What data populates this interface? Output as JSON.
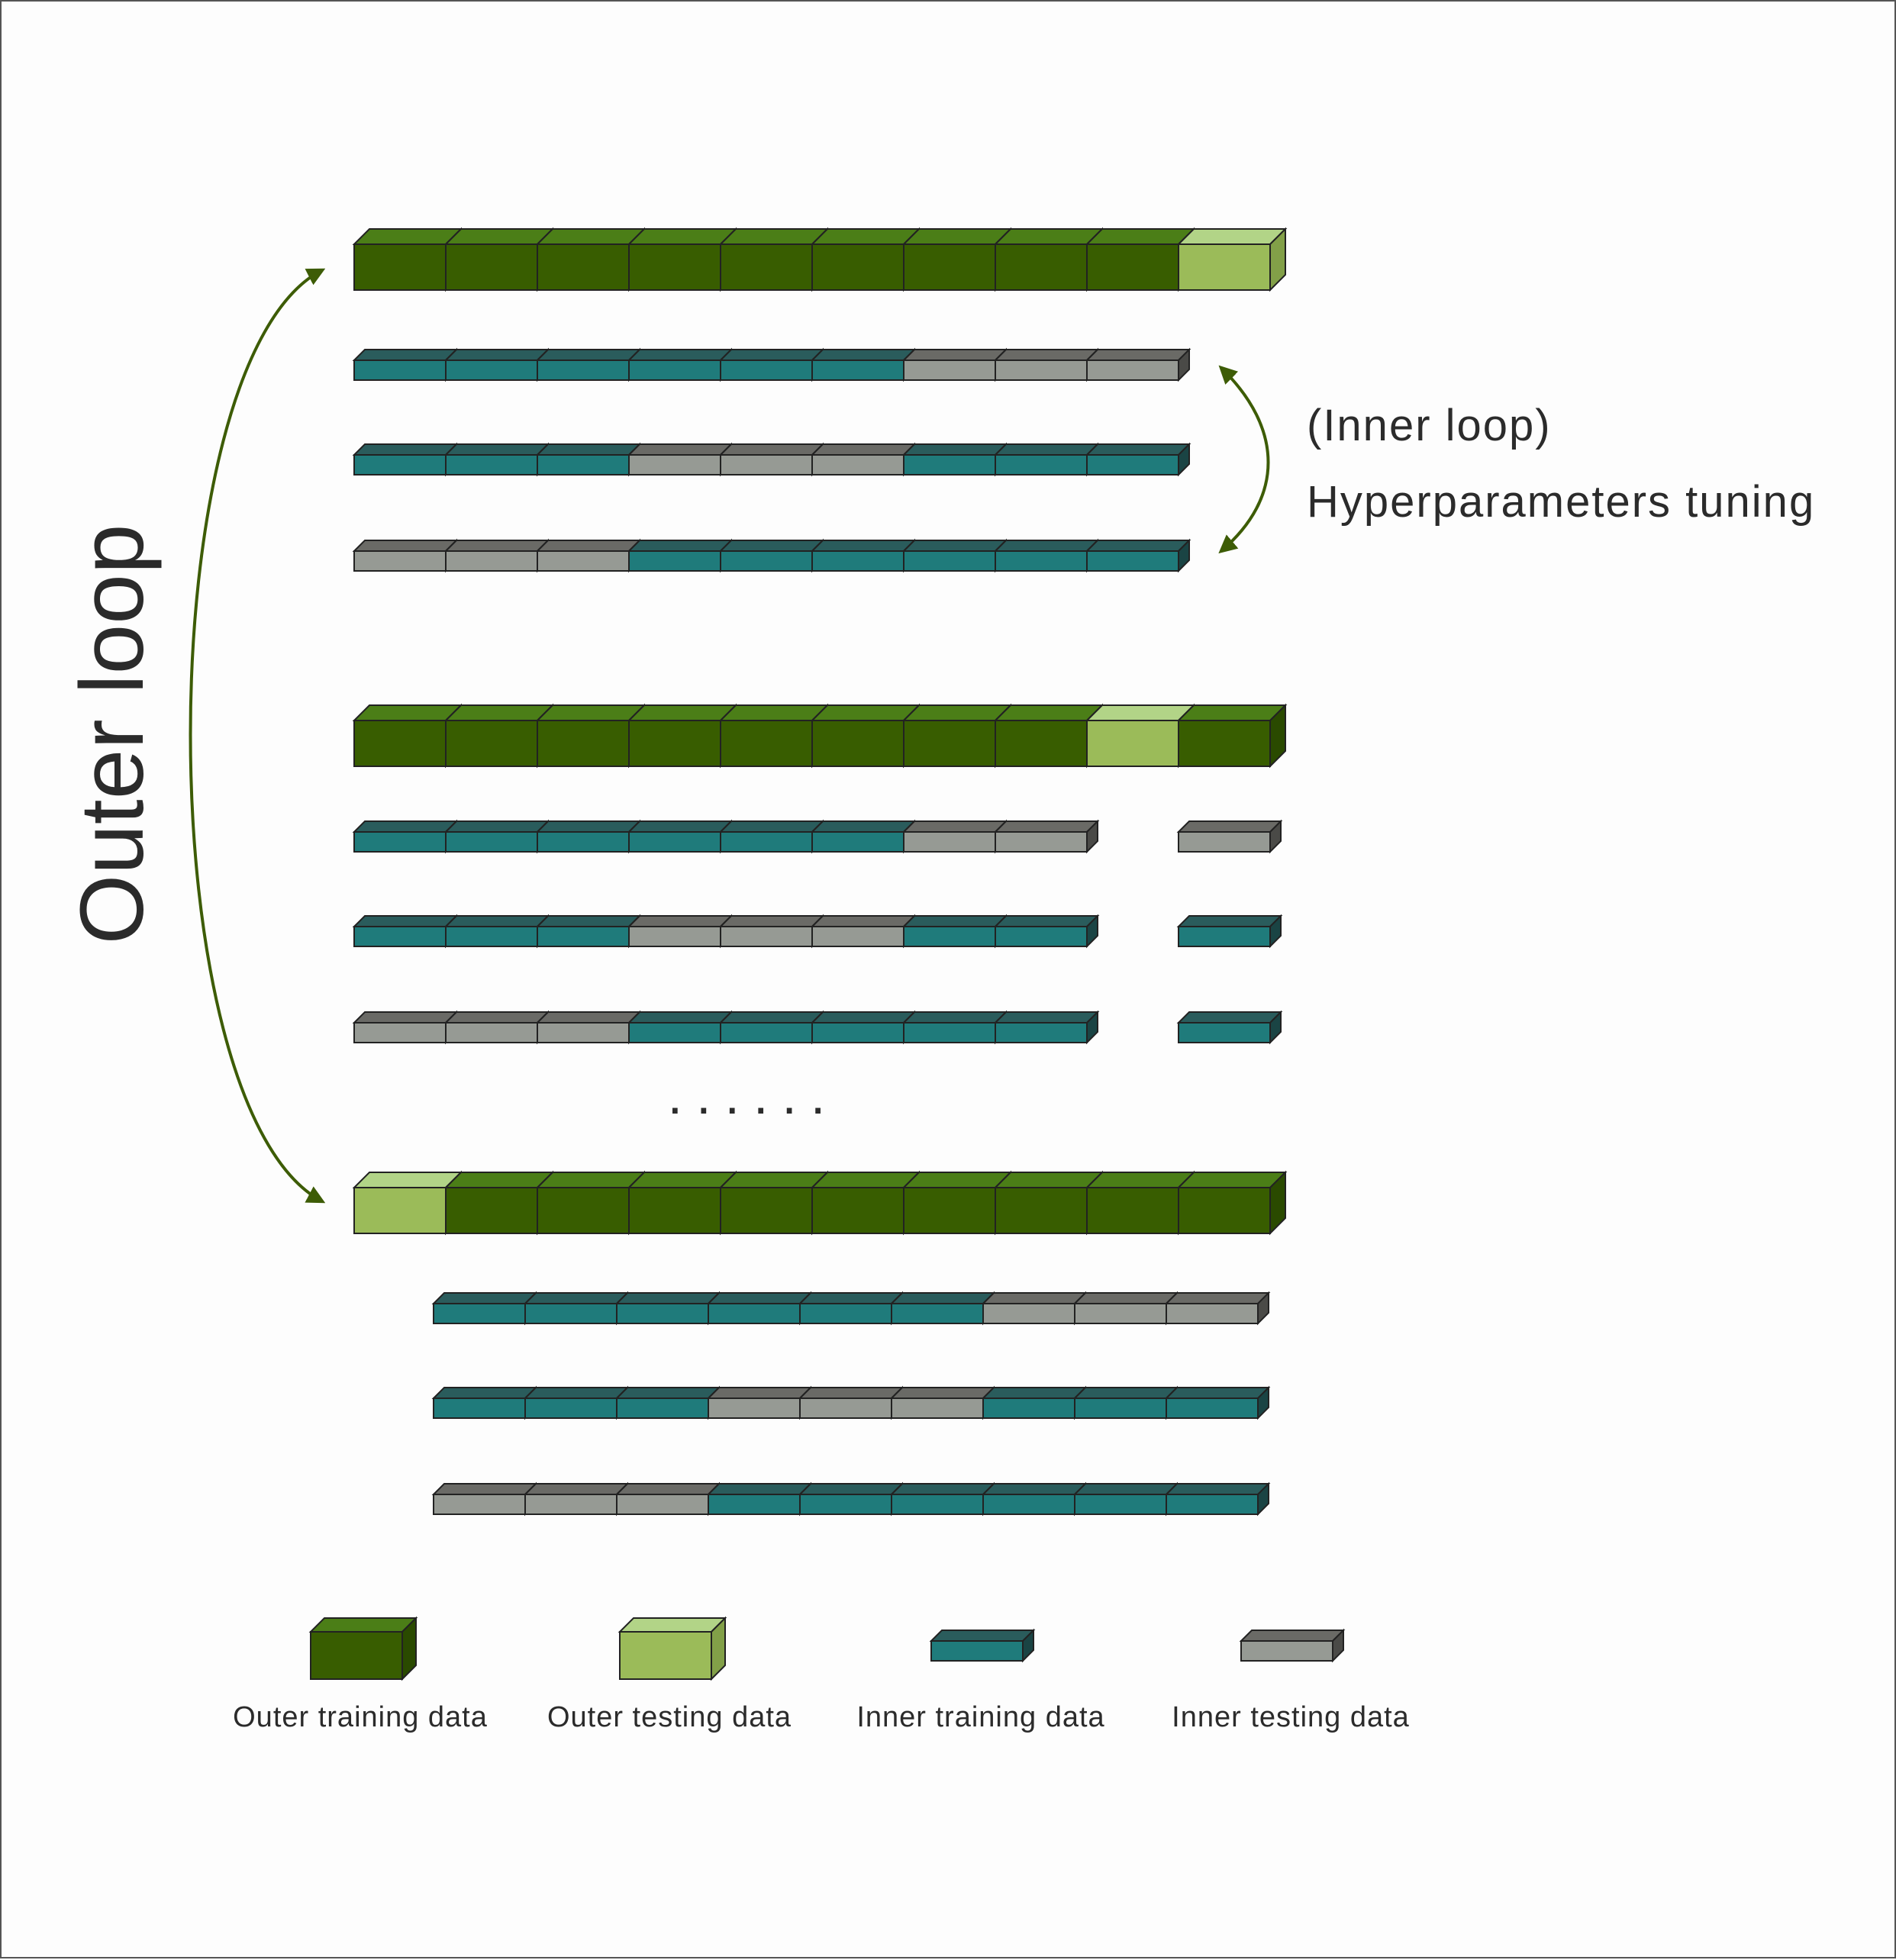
{
  "outer_loop_label": "Outer loop",
  "inner_loop_label": "(Inner loop)",
  "inner_loop_caption": "Hyperparameters tuning",
  "ellipsis": "......",
  "colors": {
    "outer_train": "#385d00",
    "outer_test": "#9bbb59",
    "inner_train": "#1f7b7b",
    "inner_test": "#969a94",
    "arrow": "#3d5c06"
  },
  "legend": [
    {
      "key": "outer_train",
      "label": "Outer training data"
    },
    {
      "key": "outer_test",
      "label": "Outer testing data"
    },
    {
      "key": "inner_train",
      "label": "Inner training data"
    },
    {
      "key": "inner_test",
      "label": "Inner testing data"
    }
  ],
  "groups": [
    {
      "outer": [
        "OTR",
        "OTR",
        "OTR",
        "OTR",
        "OTR",
        "OTR",
        "OTR",
        "OTR",
        "OTR",
        "OTE"
      ],
      "inner": [
        [
          "ITR",
          "ITR",
          "ITR",
          "ITR",
          "ITR",
          "ITR",
          "ITE",
          "ITE",
          "ITE"
        ],
        [
          "ITR",
          "ITR",
          "ITR",
          "ITE",
          "ITE",
          "ITE",
          "ITR",
          "ITR",
          "ITR"
        ],
        [
          "ITE",
          "ITE",
          "ITE",
          "ITR",
          "ITR",
          "ITR",
          "ITR",
          "ITR",
          "ITR"
        ]
      ]
    },
    {
      "outer": [
        "OTR",
        "OTR",
        "OTR",
        "OTR",
        "OTR",
        "OTR",
        "OTR",
        "OTR",
        "OTE",
        "OTR"
      ],
      "inner": [
        [
          "ITR",
          "ITR",
          "ITR",
          "ITR",
          "ITR",
          "ITR",
          "ITE",
          "ITE",
          "GAP",
          "ITE"
        ],
        [
          "ITR",
          "ITR",
          "ITR",
          "ITE",
          "ITE",
          "ITE",
          "ITR",
          "ITR",
          "GAP",
          "ITR"
        ],
        [
          "ITE",
          "ITE",
          "ITE",
          "ITR",
          "ITR",
          "ITR",
          "ITR",
          "ITR",
          "GAP",
          "ITR"
        ]
      ]
    },
    {
      "outer": [
        "OTE",
        "OTR",
        "OTR",
        "OTR",
        "OTR",
        "OTR",
        "OTR",
        "OTR",
        "OTR",
        "OTR"
      ],
      "inner": [
        [
          "ITR",
          "ITR",
          "ITR",
          "ITR",
          "ITR",
          "ITR",
          "ITE",
          "ITE",
          "ITE"
        ],
        [
          "ITR",
          "ITR",
          "ITR",
          "ITE",
          "ITE",
          "ITE",
          "ITR",
          "ITR",
          "ITR"
        ],
        [
          "ITE",
          "ITE",
          "ITE",
          "ITR",
          "ITR",
          "ITR",
          "ITR",
          "ITR",
          "ITR"
        ]
      ]
    }
  ]
}
